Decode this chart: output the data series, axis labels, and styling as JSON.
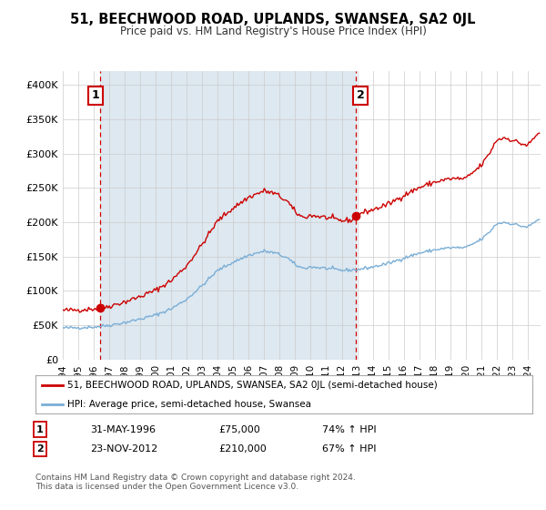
{
  "title": "51, BEECHWOOD ROAD, UPLANDS, SWANSEA, SA2 0JL",
  "subtitle": "Price paid vs. HM Land Registry's House Price Index (HPI)",
  "xlim_start": 1994.0,
  "xlim_end": 2024.83,
  "ylim": [
    0,
    420000
  ],
  "yticks": [
    0,
    50000,
    100000,
    150000,
    200000,
    250000,
    300000,
    350000,
    400000
  ],
  "ytick_labels": [
    "£0",
    "£50K",
    "£100K",
    "£150K",
    "£200K",
    "£250K",
    "£300K",
    "£350K",
    "£400K"
  ],
  "xticks": [
    1994,
    1995,
    1996,
    1997,
    1998,
    1999,
    2000,
    2001,
    2002,
    2003,
    2004,
    2005,
    2006,
    2007,
    2008,
    2009,
    2010,
    2011,
    2012,
    2013,
    2014,
    2015,
    2016,
    2017,
    2018,
    2019,
    2020,
    2021,
    2022,
    2023,
    2024
  ],
  "sale1_x": 1996.42,
  "sale1_y": 75000,
  "sale2_x": 2012.9,
  "sale2_y": 210000,
  "legend_line1_color": "#cc0000",
  "legend_line2_color": "#7aaed6",
  "legend_label1": "51, BEECHWOOD ROAD, UPLANDS, SWANSEA, SA2 0JL (semi-detached house)",
  "legend_label2": "HPI: Average price, semi-detached house, Swansea",
  "table_row1": [
    "1",
    "31-MAY-1996",
    "£75,000",
    "74% ↑ HPI"
  ],
  "table_row2": [
    "2",
    "23-NOV-2012",
    "£210,000",
    "67% ↑ HPI"
  ],
  "footnote": "Contains HM Land Registry data © Crown copyright and database right 2024.\nThis data is licensed under the Open Government Licence v3.0.",
  "background_color": "#ffffff",
  "plot_bg_color": "#ffffff",
  "shaded_bg_color": "#dde8f0",
  "grid_color": "#cccccc",
  "red_line_color": "#cc0000",
  "blue_line_color": "#7aaed6",
  "vline_color": "#cc0000"
}
